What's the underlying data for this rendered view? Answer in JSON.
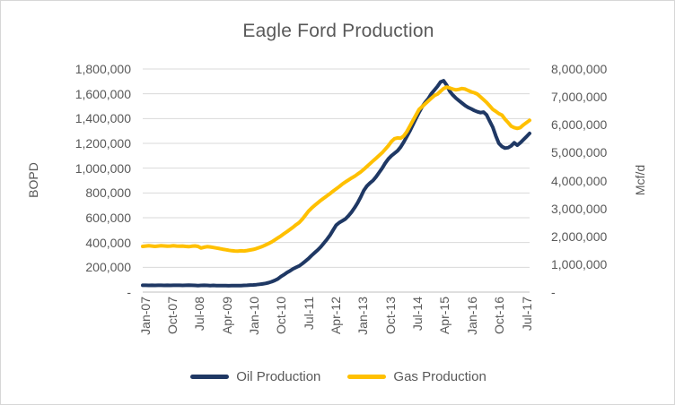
{
  "chart_data": {
    "type": "line",
    "title": "Eagle Ford Production",
    "x_start": "Jan-07",
    "x_end": "Jul-17",
    "x_frequency": "monthly",
    "x_tick_labels": [
      "Jan-07",
      "Oct-07",
      "Jul-08",
      "Apr-09",
      "Jan-10",
      "Oct-10",
      "Jul-11",
      "Apr-12",
      "Jan-13",
      "Oct-13",
      "Jul-14",
      "Apr-15",
      "Jan-16",
      "Oct-16",
      "Jul-17"
    ],
    "grid": true,
    "legend_position": "bottom",
    "colors": {
      "gridline": "#d9d9d9",
      "axis_line": "#bfbfbf",
      "text": "#595959"
    },
    "y_left": {
      "title": "BOPD",
      "range": [
        0,
        1800000
      ],
      "tick_values": [
        1800000,
        1600000,
        1400000,
        1200000,
        1000000,
        800000,
        600000,
        400000,
        200000,
        0
      ],
      "tick_labels": [
        "1,800,000",
        "1,600,000",
        "1,400,000",
        "1,200,000",
        "1,000,000",
        "800,000",
        "600,000",
        "400,000",
        "200,000",
        "-"
      ]
    },
    "y_right": {
      "title": "Mcf/d",
      "range": [
        0,
        8000000
      ],
      "tick_values": [
        8000000,
        7000000,
        6000000,
        5000000,
        4000000,
        3000000,
        2000000,
        1000000,
        0
      ],
      "tick_labels": [
        "8,000,000",
        "7,000,000",
        "6,000,000",
        "5,000,000",
        "4,000,000",
        "3,000,000",
        "2,000,000",
        "1,000,000",
        "-"
      ]
    },
    "series": [
      {
        "name": "Oil Production",
        "axis": "left",
        "unit": "BOPD",
        "color": "#1f3864",
        "values": [
          55000,
          55000,
          54000,
          55000,
          54000,
          55000,
          55000,
          54000,
          55000,
          54000,
          55000,
          55000,
          55000,
          54000,
          55000,
          56000,
          55000,
          54000,
          53000,
          54000,
          55000,
          54000,
          53000,
          54000,
          53000,
          52000,
          53000,
          52000,
          51000,
          52000,
          53000,
          52000,
          53000,
          54000,
          55000,
          57000,
          58000,
          60000,
          63000,
          66000,
          70000,
          76000,
          84000,
          94000,
          106000,
          125000,
          140000,
          158000,
          172000,
          188000,
          200000,
          212000,
          230000,
          250000,
          270000,
          295000,
          318000,
          340000,
          365000,
          395000,
          425000,
          460000,
          500000,
          540000,
          560000,
          575000,
          590000,
          615000,
          645000,
          680000,
          720000,
          768000,
          820000,
          855000,
          880000,
          900000,
          930000,
          965000,
          1000000,
          1040000,
          1075000,
          1100000,
          1120000,
          1140000,
          1170000,
          1210000,
          1255000,
          1300000,
          1350000,
          1400000,
          1450000,
          1495000,
          1530000,
          1560000,
          1600000,
          1630000,
          1660000,
          1695000,
          1705000,
          1670000,
          1620000,
          1590000,
          1565000,
          1545000,
          1525000,
          1505000,
          1490000,
          1478000,
          1465000,
          1455000,
          1448000,
          1452000,
          1430000,
          1380000,
          1330000,
          1260000,
          1200000,
          1175000,
          1162000,
          1165000,
          1180000,
          1205000,
          1185000,
          1205000,
          1230000,
          1255000,
          1280000
        ]
      },
      {
        "name": "Gas Production",
        "axis": "right",
        "unit": "Mcf/d",
        "color": "#ffc000",
        "values": [
          1640000,
          1650000,
          1660000,
          1650000,
          1640000,
          1650000,
          1660000,
          1655000,
          1645000,
          1650000,
          1660000,
          1650000,
          1645000,
          1650000,
          1640000,
          1630000,
          1645000,
          1655000,
          1640000,
          1580000,
          1610000,
          1630000,
          1620000,
          1600000,
          1580000,
          1560000,
          1540000,
          1520000,
          1500000,
          1485000,
          1475000,
          1470000,
          1480000,
          1475000,
          1490000,
          1510000,
          1530000,
          1560000,
          1600000,
          1640000,
          1690000,
          1740000,
          1800000,
          1870000,
          1940000,
          2010000,
          2090000,
          2170000,
          2250000,
          2330000,
          2420000,
          2500000,
          2620000,
          2760000,
          2900000,
          3010000,
          3110000,
          3200000,
          3290000,
          3370000,
          3450000,
          3530000,
          3620000,
          3700000,
          3780000,
          3870000,
          3950000,
          4020000,
          4090000,
          4150000,
          4230000,
          4310000,
          4400000,
          4500000,
          4600000,
          4700000,
          4800000,
          4900000,
          5000000,
          5120000,
          5250000,
          5400000,
          5500000,
          5530000,
          5520000,
          5600000,
          5750000,
          5950000,
          6150000,
          6350000,
          6550000,
          6650000,
          6750000,
          6850000,
          6950000,
          7050000,
          7100000,
          7200000,
          7300000,
          7350000,
          7320000,
          7280000,
          7250000,
          7270000,
          7300000,
          7280000,
          7230000,
          7180000,
          7150000,
          7100000,
          7000000,
          6900000,
          6800000,
          6680000,
          6550000,
          6480000,
          6400000,
          6350000,
          6200000,
          6080000,
          5950000,
          5900000,
          5870000,
          5900000,
          6000000,
          6080000,
          6160000
        ]
      }
    ]
  }
}
